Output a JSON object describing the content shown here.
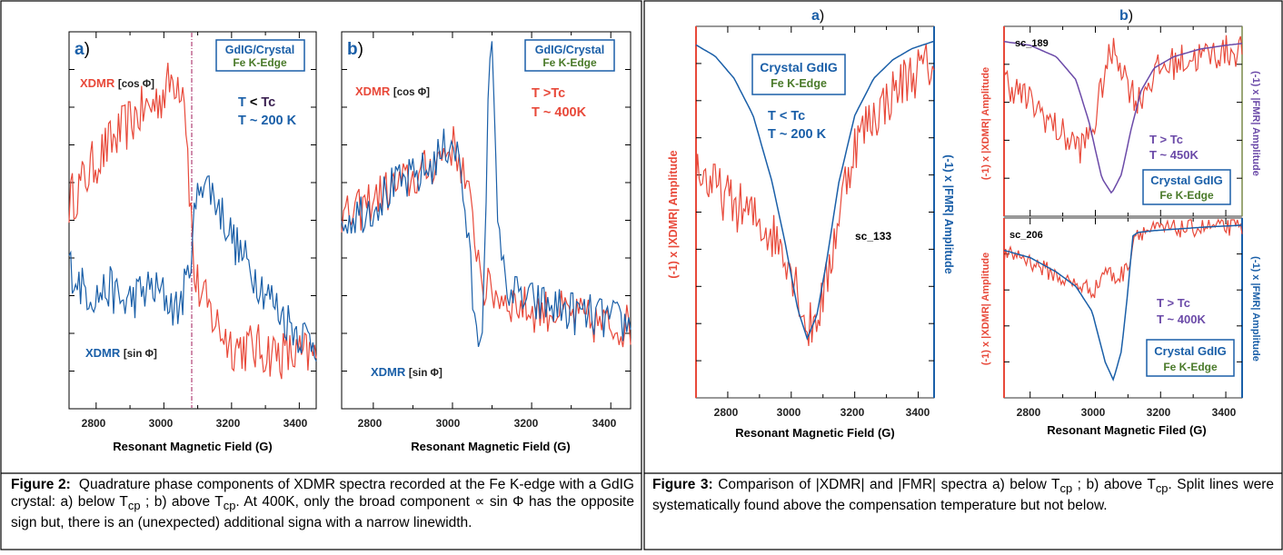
{
  "colors": {
    "xdmr_red": "#e8493a",
    "fmr_blue": "#1a5fa8",
    "box_blue": "#1a5fa8",
    "box_green": "#4a7a2a",
    "tc_dark": "#3a2050",
    "purple": "#6b4aa8",
    "marker": "#a01a5a",
    "olive": "#7a8a4a"
  },
  "figure2": {
    "caption_label": "Figure 2:",
    "caption_text": "Quadrature phase components of XDMR spectra recorded at the Fe K-edge with a GdIG crystal: a) below T",
    "caption_sub1": "cp",
    "caption_text2": " ; b) above T",
    "caption_sub2": "cp",
    "caption_text3": ". At 400K, only the broad component ∝ sin Φ has the opposite sign but, there is an (unexpected) additional signa with a narrow linewidth.",
    "panel_a": {
      "label": "a",
      "box_line1": "GdIG/Crystal",
      "box_line2": "Fe K-Edge",
      "cos_label": "XDMR",
      "cos_bracket": "[cos Φ]",
      "sin_label": "XDMR",
      "sin_bracket": "[sin Φ]",
      "temp_line1_T": "T",
      "temp_line1_op": "<",
      "temp_line1_Tc": "Tc",
      "temp_line2": "T ~ 200 K"
    },
    "panel_b": {
      "label": "b",
      "box_line1": "GdIG/Crystal",
      "box_line2": "Fe K-Edge",
      "cos_label": "XDMR",
      "cos_bracket": "[cos Φ]",
      "sin_label": "XDMR",
      "sin_bracket": "[sin Φ]",
      "temp_line1": "T >Tc",
      "temp_line2": "T ~ 400K"
    },
    "xlabel_a": "Resonant Magnetic Field (G)",
    "xlabel_b": "Resonant Magnetic Field (G)",
    "xticks": [
      "2800",
      "3000",
      "3200",
      "3400"
    ]
  },
  "figure3": {
    "title_a": "a",
    "title_b": "b",
    "caption_label": "Figure 3:",
    "caption_text": " Comparison of |XDMR| and |FMR| spectra a) below T",
    "caption_sub1": "cp",
    "caption_text2": " ; b) above T",
    "caption_sub2": "cp",
    "caption_text3": ". Split lines were systematically found above the compensation temperature but not below.",
    "panel_a": {
      "box_line1": "Crystal GdIG",
      "box_line2": "Fe K-Edge",
      "temp_line1": "T < Tc",
      "temp_line2": "T ~ 200 K",
      "scan": "sc_133",
      "ylabel_left": "(-1) x |XDMR| Amplitude",
      "ylabel_right": "(-1) x |FMR| Amplitude",
      "xlabel": "Resonant Magnetic Field (G)"
    },
    "panel_b_top": {
      "scan": "sc_189",
      "temp_line1": "T > Tc",
      "temp_line2": "T ~ 450K",
      "box_line1": "Crystal GdIG",
      "box_line2": "Fe K-Edge",
      "ylabel_left": "(-1) x |XDMR| Amplitude",
      "ylabel_right": "(-1) x |FMR| Amplitude"
    },
    "panel_b_bottom": {
      "scan": "sc_206",
      "temp_line1": "T > Tc",
      "temp_line2": "T ~ 400K",
      "box_line1": "Crystal GdIG",
      "box_line2": "Fe K-Edge",
      "ylabel_left": "(-1) x |XDMR| Amplitude",
      "ylabel_right": "(-1) x |FMR| Amplitude",
      "xlabel": "Resonant Magnetic Filed (G)"
    },
    "xticks": [
      "2800",
      "3000",
      "3200",
      "3400"
    ]
  },
  "chart_data": [
    {
      "type": "line",
      "id": "fig2a",
      "xlim": [
        2720,
        3450
      ],
      "series": [
        {
          "name": "XDMR [cos Φ]",
          "x": [
            2720,
            2760,
            2800,
            2840,
            2880,
            2920,
            2960,
            3000,
            3030,
            3060,
            3075,
            3090,
            3120,
            3160,
            3200,
            3260,
            3320,
            3380,
            3450
          ],
          "y": [
            0.55,
            0.6,
            0.66,
            0.7,
            0.74,
            0.78,
            0.8,
            0.84,
            0.88,
            0.86,
            0.6,
            0.35,
            0.28,
            0.22,
            0.17,
            0.16,
            0.15,
            0.14,
            0.14
          ]
        },
        {
          "name": "XDMR [sin Φ]",
          "x": [
            2720,
            2760,
            2800,
            2840,
            2880,
            2920,
            2960,
            3000,
            3040,
            3070,
            3090,
            3110,
            3140,
            3180,
            3220,
            3280,
            3340,
            3400,
            3450
          ],
          "y": [
            0.38,
            0.32,
            0.3,
            0.32,
            0.28,
            0.3,
            0.32,
            0.3,
            0.26,
            0.34,
            0.5,
            0.62,
            0.58,
            0.5,
            0.42,
            0.34,
            0.26,
            0.2,
            0.18
          ]
        }
      ]
    },
    {
      "type": "line",
      "id": "fig2b",
      "xlim": [
        2720,
        3450
      ],
      "series": [
        {
          "name": "XDMR [cos Φ]",
          "x": [
            2720,
            2760,
            2800,
            2840,
            2880,
            2920,
            2960,
            3000,
            3020,
            3040,
            3060,
            3080,
            3120,
            3160,
            3200,
            3260,
            3320,
            3380,
            3450
          ],
          "y": [
            0.5,
            0.52,
            0.56,
            0.58,
            0.6,
            0.62,
            0.66,
            0.7,
            0.66,
            0.56,
            0.44,
            0.32,
            0.3,
            0.28,
            0.26,
            0.26,
            0.24,
            0.22,
            0.22
          ]
        },
        {
          "name": "XDMR [sin Φ]",
          "x": [
            2720,
            2760,
            2800,
            2840,
            2880,
            2920,
            2960,
            3000,
            3020,
            3040,
            3060,
            3075,
            3090,
            3100,
            3110,
            3130,
            3160,
            3200,
            3260,
            3320,
            3380,
            3450
          ],
          "y": [
            0.5,
            0.52,
            0.54,
            0.58,
            0.6,
            0.62,
            0.66,
            0.72,
            0.64,
            0.44,
            0.18,
            0.22,
            0.8,
            0.96,
            0.6,
            0.34,
            0.3,
            0.28,
            0.27,
            0.25,
            0.24,
            0.22
          ]
        }
      ]
    },
    {
      "type": "line",
      "id": "fig3a",
      "xlim": [
        2700,
        3450
      ],
      "series": [
        {
          "name": "|XDMR|",
          "x": [
            2700,
            2740,
            2780,
            2820,
            2860,
            2900,
            2940,
            2980,
            3020,
            3050,
            3080,
            3110,
            3140,
            3170,
            3200,
            3240,
            3280,
            3320,
            3360,
            3400,
            3450
          ],
          "y": [
            0.62,
            0.58,
            0.55,
            0.52,
            0.5,
            0.47,
            0.44,
            0.4,
            0.3,
            0.18,
            0.22,
            0.3,
            0.45,
            0.58,
            0.68,
            0.74,
            0.78,
            0.82,
            0.86,
            0.88,
            0.9
          ]
        },
        {
          "name": "|FMR|",
          "x": [
            2700,
            2760,
            2820,
            2880,
            2940,
            2980,
            3020,
            3050,
            3080,
            3110,
            3150,
            3200,
            3260,
            3320,
            3380,
            3450
          ],
          "y": [
            0.95,
            0.92,
            0.86,
            0.76,
            0.58,
            0.42,
            0.24,
            0.16,
            0.22,
            0.36,
            0.58,
            0.76,
            0.86,
            0.91,
            0.94,
            0.96
          ]
        }
      ]
    },
    {
      "type": "line",
      "id": "fig3b_top",
      "xlim": [
        2720,
        3450
      ],
      "series": [
        {
          "name": "|XDMR|",
          "x": [
            2720,
            2760,
            2800,
            2840,
            2880,
            2920,
            2960,
            3000,
            3030,
            3060,
            3080,
            3100,
            3130,
            3160,
            3200,
            3260,
            3320,
            3380,
            3450
          ],
          "y": [
            0.72,
            0.66,
            0.6,
            0.54,
            0.46,
            0.4,
            0.36,
            0.5,
            0.78,
            0.88,
            0.8,
            0.7,
            0.6,
            0.7,
            0.78,
            0.82,
            0.84,
            0.86,
            0.88
          ]
        },
        {
          "name": "|FMR|",
          "x": [
            2720,
            2800,
            2880,
            2940,
            2980,
            3020,
            3050,
            3080,
            3110,
            3140,
            3180,
            3240,
            3320,
            3400,
            3450
          ],
          "y": [
            0.92,
            0.9,
            0.84,
            0.72,
            0.5,
            0.2,
            0.12,
            0.22,
            0.46,
            0.66,
            0.78,
            0.84,
            0.88,
            0.9,
            0.91
          ]
        }
      ]
    },
    {
      "type": "line",
      "id": "fig3b_bottom",
      "xlim": [
        2720,
        3450
      ],
      "series": [
        {
          "name": "|XDMR|",
          "x": [
            2720,
            2760,
            2800,
            2840,
            2880,
            2920,
            2960,
            3000,
            3030,
            3060,
            3090,
            3110,
            3120,
            3160,
            3220,
            3280,
            3340,
            3400,
            3450
          ],
          "y": [
            0.78,
            0.8,
            0.76,
            0.72,
            0.68,
            0.64,
            0.62,
            0.6,
            0.72,
            0.66,
            0.7,
            0.8,
            0.92,
            0.93,
            0.94,
            0.94,
            0.95,
            0.95,
            0.95
          ]
        },
        {
          "name": "|FMR|",
          "x": [
            2720,
            2800,
            2880,
            2940,
            2990,
            3030,
            3055,
            3080,
            3100,
            3115,
            3130,
            3180,
            3260,
            3340,
            3450
          ],
          "y": [
            0.82,
            0.78,
            0.7,
            0.62,
            0.48,
            0.2,
            0.1,
            0.26,
            0.6,
            0.9,
            0.92,
            0.93,
            0.94,
            0.95,
            0.96
          ]
        }
      ]
    }
  ]
}
